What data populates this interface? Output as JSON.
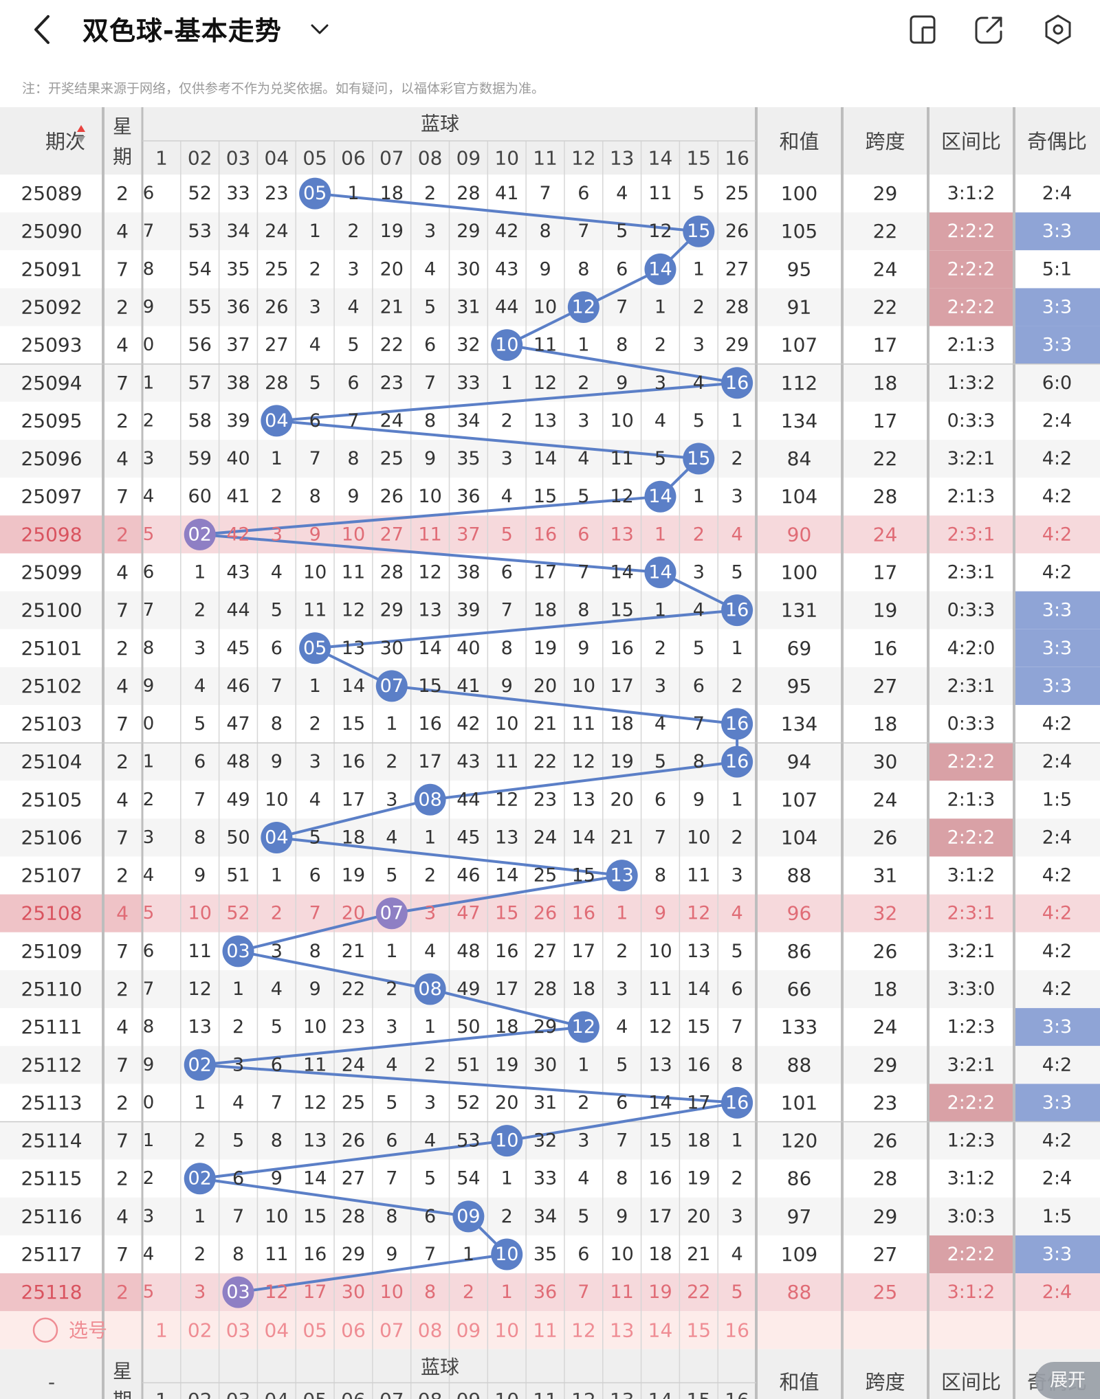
{
  "header": {
    "title": "双色球-基本走势",
    "note": "注：开奖结果来源于网络，仅供参考不作为兑奖依据。如有疑问，以福体彩官方数据为准。"
  },
  "columns": {
    "issue": "期次",
    "weekday": "星期",
    "blue": "蓝球",
    "sum": "和值",
    "span": "跨度",
    "zone_ratio": "区间比",
    "odd_even": "奇偶比",
    "blue_numbers": [
      "1",
      "02",
      "03",
      "04",
      "05",
      "06",
      "07",
      "08",
      "09",
      "10",
      "11",
      "12",
      "13",
      "14",
      "15",
      "16"
    ]
  },
  "rows": [
    {
      "issue": "25089",
      "weekday": "2",
      "first": "6",
      "cells": [
        "52",
        "33",
        "23",
        "05",
        "1",
        "18",
        "2",
        "28",
        "41",
        "7",
        "6",
        "4",
        "11",
        "5",
        "25"
      ],
      "sum": "100",
      "span": "29",
      "zone": "3:1:2",
      "oe": "2:4"
    },
    {
      "issue": "25090",
      "weekday": "4",
      "first": "7",
      "cells": [
        "53",
        "34",
        "24",
        "1",
        "2",
        "19",
        "3",
        "29",
        "42",
        "8",
        "7",
        "5",
        "12",
        "15",
        "26"
      ],
      "sum": "105",
      "span": "22",
      "zone": "2:2:2",
      "oe": "3:3"
    },
    {
      "issue": "25091",
      "weekday": "7",
      "first": "8",
      "cells": [
        "54",
        "35",
        "25",
        "2",
        "3",
        "20",
        "4",
        "30",
        "43",
        "9",
        "8",
        "6",
        "14",
        "1",
        "27"
      ],
      "sum": "95",
      "span": "24",
      "zone": "2:2:2",
      "oe": "5:1"
    },
    {
      "issue": "25092",
      "weekday": "2",
      "first": "9",
      "cells": [
        "55",
        "36",
        "26",
        "3",
        "4",
        "21",
        "5",
        "31",
        "44",
        "10",
        "12",
        "7",
        "1",
        "2",
        "28"
      ],
      "sum": "91",
      "span": "22",
      "zone": "2:2:2",
      "oe": "3:3"
    },
    {
      "issue": "25093",
      "weekday": "4",
      "first": "0",
      "cells": [
        "56",
        "37",
        "27",
        "4",
        "5",
        "22",
        "6",
        "32",
        "10",
        "11",
        "1",
        "8",
        "2",
        "3",
        "29"
      ],
      "sum": "107",
      "span": "17",
      "zone": "2:1:3",
      "oe": "3:3"
    },
    {
      "issue": "25094",
      "weekday": "7",
      "first": "1",
      "cells": [
        "57",
        "38",
        "28",
        "5",
        "6",
        "23",
        "7",
        "33",
        "1",
        "12",
        "2",
        "9",
        "3",
        "4",
        "16"
      ],
      "sum": "112",
      "span": "18",
      "zone": "1:3:2",
      "oe": "6:0"
    },
    {
      "issue": "25095",
      "weekday": "2",
      "first": "2",
      "cells": [
        "58",
        "39",
        "04",
        "6",
        "7",
        "24",
        "8",
        "34",
        "2",
        "13",
        "3",
        "10",
        "4",
        "5",
        "1"
      ],
      "sum": "134",
      "span": "17",
      "zone": "0:3:3",
      "oe": "2:4"
    },
    {
      "issue": "25096",
      "weekday": "4",
      "first": "3",
      "cells": [
        "59",
        "40",
        "1",
        "7",
        "8",
        "25",
        "9",
        "35",
        "3",
        "14",
        "4",
        "11",
        "5",
        "15",
        "2"
      ],
      "sum": "84",
      "span": "22",
      "zone": "3:2:1",
      "oe": "4:2"
    },
    {
      "issue": "25097",
      "weekday": "7",
      "first": "4",
      "cells": [
        "60",
        "41",
        "2",
        "8",
        "9",
        "26",
        "10",
        "36",
        "4",
        "15",
        "5",
        "12",
        "14",
        "1",
        "3"
      ],
      "sum": "104",
      "span": "28",
      "zone": "2:1:3",
      "oe": "4:2"
    },
    {
      "issue": "25098",
      "weekday": "2",
      "first": "5",
      "cells": [
        "02",
        "42",
        "3",
        "9",
        "10",
        "27",
        "11",
        "37",
        "5",
        "16",
        "6",
        "13",
        "1",
        "2",
        "4"
      ],
      "sum": "90",
      "span": "24",
      "zone": "2:3:1",
      "oe": "4:2"
    },
    {
      "issue": "25099",
      "weekday": "4",
      "first": "6",
      "cells": [
        "1",
        "43",
        "4",
        "10",
        "11",
        "28",
        "12",
        "38",
        "6",
        "17",
        "7",
        "14",
        "14",
        "3",
        "5"
      ],
      "sum": "100",
      "span": "17",
      "zone": "2:3:1",
      "oe": "4:2"
    },
    {
      "issue": "25100",
      "weekday": "7",
      "first": "7",
      "cells": [
        "2",
        "44",
        "5",
        "11",
        "12",
        "29",
        "13",
        "39",
        "7",
        "18",
        "8",
        "15",
        "1",
        "4",
        "16"
      ],
      "sum": "131",
      "span": "19",
      "zone": "0:3:3",
      "oe": "3:3"
    },
    {
      "issue": "25101",
      "weekday": "2",
      "first": "8",
      "cells": [
        "3",
        "45",
        "6",
        "05",
        "13",
        "30",
        "14",
        "40",
        "8",
        "19",
        "9",
        "16",
        "2",
        "5",
        "1"
      ],
      "sum": "69",
      "span": "16",
      "zone": "4:2:0",
      "oe": "3:3"
    },
    {
      "issue": "25102",
      "weekday": "4",
      "first": "9",
      "cells": [
        "4",
        "46",
        "7",
        "1",
        "14",
        "07",
        "15",
        "41",
        "9",
        "20",
        "10",
        "17",
        "3",
        "6",
        "2"
      ],
      "sum": "95",
      "span": "27",
      "zone": "2:3:1",
      "oe": "3:3"
    },
    {
      "issue": "25103",
      "weekday": "7",
      "first": "0",
      "cells": [
        "5",
        "47",
        "8",
        "2",
        "15",
        "1",
        "16",
        "42",
        "10",
        "21",
        "11",
        "18",
        "4",
        "7",
        "16"
      ],
      "sum": "134",
      "span": "18",
      "zone": "0:3:3",
      "oe": "4:2"
    },
    {
      "issue": "25104",
      "weekday": "2",
      "first": "1",
      "cells": [
        "6",
        "48",
        "9",
        "3",
        "16",
        "2",
        "17",
        "43",
        "11",
        "22",
        "12",
        "19",
        "5",
        "8",
        "16"
      ],
      "sum": "94",
      "span": "30",
      "zone": "2:2:2",
      "oe": "2:4"
    },
    {
      "issue": "25105",
      "weekday": "4",
      "first": "2",
      "cells": [
        "7",
        "49",
        "10",
        "4",
        "17",
        "3",
        "08",
        "44",
        "12",
        "23",
        "13",
        "20",
        "6",
        "9",
        "1"
      ],
      "sum": "107",
      "span": "24",
      "zone": "2:1:3",
      "oe": "1:5"
    },
    {
      "issue": "25106",
      "weekday": "7",
      "first": "3",
      "cells": [
        "8",
        "50",
        "04",
        "5",
        "18",
        "4",
        "1",
        "45",
        "13",
        "24",
        "14",
        "21",
        "7",
        "10",
        "2"
      ],
      "sum": "104",
      "span": "26",
      "zone": "2:2:2",
      "oe": "2:4"
    },
    {
      "issue": "25107",
      "weekday": "2",
      "first": "4",
      "cells": [
        "9",
        "51",
        "1",
        "6",
        "19",
        "5",
        "2",
        "46",
        "14",
        "25",
        "15",
        "13",
        "8",
        "11",
        "3"
      ],
      "sum": "88",
      "span": "31",
      "zone": "3:1:2",
      "oe": "4:2"
    },
    {
      "issue": "25108",
      "weekday": "4",
      "first": "5",
      "cells": [
        "10",
        "52",
        "2",
        "7",
        "20",
        "07",
        "3",
        "47",
        "15",
        "26",
        "16",
        "1",
        "9",
        "12",
        "4"
      ],
      "sum": "96",
      "span": "32",
      "zone": "2:3:1",
      "oe": "4:2"
    },
    {
      "issue": "25109",
      "weekday": "7",
      "first": "6",
      "cells": [
        "11",
        "03",
        "3",
        "8",
        "21",
        "1",
        "4",
        "48",
        "16",
        "27",
        "17",
        "2",
        "10",
        "13",
        "5"
      ],
      "sum": "86",
      "span": "26",
      "zone": "3:2:1",
      "oe": "4:2"
    },
    {
      "issue": "25110",
      "weekday": "2",
      "first": "7",
      "cells": [
        "12",
        "1",
        "4",
        "9",
        "22",
        "2",
        "08",
        "49",
        "17",
        "28",
        "18",
        "3",
        "11",
        "14",
        "6"
      ],
      "sum": "66",
      "span": "18",
      "zone": "3:3:0",
      "oe": "4:2"
    },
    {
      "issue": "25111",
      "weekday": "4",
      "first": "8",
      "cells": [
        "13",
        "2",
        "5",
        "10",
        "23",
        "3",
        "1",
        "50",
        "18",
        "29",
        "12",
        "4",
        "12",
        "15",
        "7"
      ],
      "sum": "133",
      "span": "24",
      "zone": "1:2:3",
      "oe": "3:3"
    },
    {
      "issue": "25112",
      "weekday": "7",
      "first": "9",
      "cells": [
        "02",
        "3",
        "6",
        "11",
        "24",
        "4",
        "2",
        "51",
        "19",
        "30",
        "1",
        "5",
        "13",
        "16",
        "8"
      ],
      "sum": "88",
      "span": "29",
      "zone": "3:2:1",
      "oe": "4:2"
    },
    {
      "issue": "25113",
      "weekday": "2",
      "first": "0",
      "cells": [
        "1",
        "4",
        "7",
        "12",
        "25",
        "5",
        "3",
        "52",
        "20",
        "31",
        "2",
        "6",
        "14",
        "17",
        "16"
      ],
      "sum": "101",
      "span": "23",
      "zone": "2:2:2",
      "oe": "3:3"
    },
    {
      "issue": "25114",
      "weekday": "7",
      "first": "1",
      "cells": [
        "2",
        "5",
        "8",
        "13",
        "26",
        "6",
        "4",
        "53",
        "10",
        "32",
        "3",
        "7",
        "15",
        "18",
        "1"
      ],
      "sum": "120",
      "span": "26",
      "zone": "1:2:3",
      "oe": "4:2"
    },
    {
      "issue": "25115",
      "weekday": "2",
      "first": "2",
      "cells": [
        "02",
        "6",
        "9",
        "14",
        "27",
        "7",
        "5",
        "54",
        "1",
        "33",
        "4",
        "8",
        "16",
        "19",
        "2"
      ],
      "sum": "86",
      "span": "28",
      "zone": "3:1:2",
      "oe": "2:4"
    },
    {
      "issue": "25116",
      "weekday": "4",
      "first": "3",
      "cells": [
        "1",
        "7",
        "10",
        "15",
        "28",
        "8",
        "6",
        "09",
        "2",
        "34",
        "5",
        "9",
        "17",
        "20",
        "3"
      ],
      "sum": "97",
      "span": "29",
      "zone": "3:0:3",
      "oe": "1:5"
    },
    {
      "issue": "25117",
      "weekday": "7",
      "first": "4",
      "cells": [
        "2",
        "8",
        "11",
        "16",
        "29",
        "9",
        "7",
        "1",
        "10",
        "35",
        "6",
        "10",
        "18",
        "21",
        "4"
      ],
      "sum": "109",
      "span": "27",
      "zone": "2:2:2",
      "oe": "3:3"
    },
    {
      "issue": "25118",
      "weekday": "2",
      "first": "5",
      "cells": [
        "3",
        "03",
        "12",
        "17",
        "30",
        "10",
        "8",
        "2",
        "1",
        "36",
        "7",
        "11",
        "19",
        "22",
        "5"
      ],
      "sum": "88",
      "span": "25",
      "zone": "3:1:2",
      "oe": "2:4"
    }
  ],
  "blue_hits": [
    5,
    15,
    14,
    12,
    10,
    16,
    4,
    15,
    14,
    2,
    14,
    16,
    5,
    7,
    16,
    16,
    8,
    4,
    13,
    7,
    3,
    8,
    12,
    2,
    16,
    10,
    2,
    9,
    10,
    3
  ],
  "highlight_rows": [
    9,
    19,
    29
  ],
  "zone_highlight_rows": [
    1,
    2,
    3,
    15,
    17,
    24,
    28
  ],
  "oe_highlight_rows": [
    1,
    3,
    4,
    11,
    12,
    13,
    22,
    24,
    28
  ],
  "select_row": {
    "label": "选号",
    "numbers": [
      "1",
      "02",
      "03",
      "04",
      "05",
      "06",
      "07",
      "08",
      "09",
      "10",
      "11",
      "12",
      "13",
      "14",
      "15",
      "16"
    ]
  },
  "footer": {
    "issue": "-",
    "weekday": "星期",
    "blue": "蓝球",
    "sum": "和值",
    "span": "跨度",
    "zone_ratio": "区间比",
    "odd_even": "奇偶比",
    "expand_button": "展开"
  },
  "colors": {
    "ball": "#5b7fc7",
    "ball_highlight": "#8e7fc4",
    "line": "#5b7fc7",
    "row_highlight": "#f6d9dc",
    "zone_highlight": "#d9a1a6",
    "oe_highlight": "#8fa4d6",
    "select_bg": "#fdecea",
    "select_text": "#ef8d94",
    "sort_up": "#e8433f",
    "sort_down": "#999999"
  },
  "icons": [
    "back-arrow-icon",
    "chevron-down-icon",
    "layout-icon",
    "share-icon",
    "settings-icon",
    "sort-icon",
    "radio-circle-icon"
  ]
}
